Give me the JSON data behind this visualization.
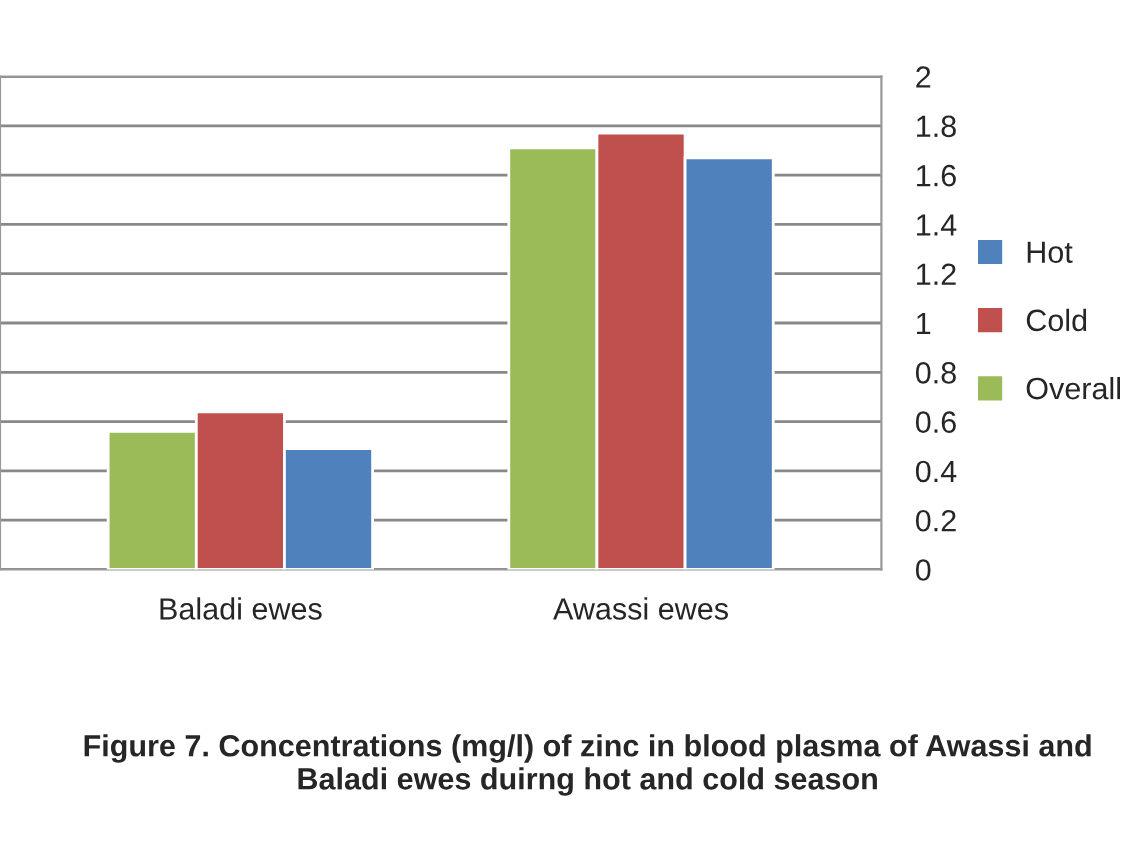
{
  "chart_data": {
    "type": "bar",
    "title": "Figure 7. Concentrations (mg/l) of zinc in blood plasma of Awassi and Baladi ewes duirng hot and cold season",
    "categories": [
      "Baladi ewes",
      "Awassi ewes"
    ],
    "series": [
      {
        "name": "Overall",
        "color": "#9bbb59",
        "values": [
          0.56,
          1.71
        ]
      },
      {
        "name": "Cold",
        "color": "#c0504d",
        "values": [
          0.64,
          1.77
        ]
      },
      {
        "name": "Hot",
        "color": "#4f81bd",
        "values": [
          0.49,
          1.67
        ]
      }
    ],
    "ylim": [
      0,
      2
    ],
    "yticks": [
      0,
      0.2,
      0.4,
      0.6,
      0.8,
      1,
      1.2,
      1.4,
      1.6,
      1.8,
      2
    ],
    "grid": "y",
    "legend": "right"
  }
}
